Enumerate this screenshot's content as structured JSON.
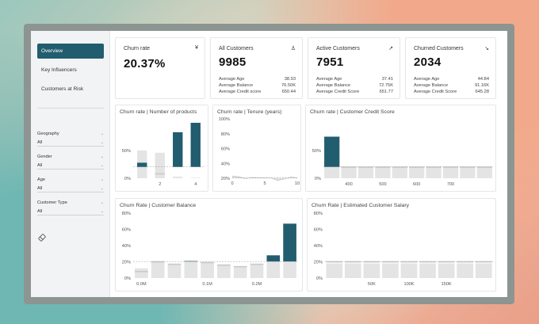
{
  "sidebar": {
    "nav": [
      {
        "label": "Overview",
        "active": true
      },
      {
        "label": "Key Influencers",
        "active": false
      },
      {
        "label": "Customers at Risk",
        "active": false
      }
    ],
    "filters": [
      {
        "label": "Geography",
        "value": "All"
      },
      {
        "label": "Gender",
        "value": "All"
      },
      {
        "label": "Age",
        "value": "All"
      },
      {
        "label": "Customer Type",
        "value": "All"
      }
    ],
    "clear_icon": "eraser-icon"
  },
  "kpis": [
    {
      "title": "Churn rate",
      "value": "20.37%",
      "icon": "chevron-down-double-icon",
      "icon_glyph": "¥",
      "rows": []
    },
    {
      "title": "All Customers",
      "value": "9985",
      "icon": "person-icon",
      "icon_glyph": "♙",
      "rows": [
        {
          "label": "Average Age",
          "value": "38.93"
        },
        {
          "label": "Average Balance",
          "value": "76.50K"
        },
        {
          "label": "Average Credit score",
          "value": "650.44"
        }
      ]
    },
    {
      "title": "Active Customers",
      "value": "7951",
      "icon": "arrow-up-right-icon",
      "icon_glyph": "↗",
      "rows": [
        {
          "label": "Average Age",
          "value": "37.41"
        },
        {
          "label": "Average Balance",
          "value": "72.75K"
        },
        {
          "label": "Average Credit Score",
          "value": "651.77"
        }
      ]
    },
    {
      "title": "Churned Customers",
      "value": "2034",
      "icon": "arrow-down-right-icon",
      "icon_glyph": "↘",
      "rows": [
        {
          "label": "Average Age",
          "value": "44.84"
        },
        {
          "label": "Average Balance",
          "value": "91.16K"
        },
        {
          "label": "Average Credit Score",
          "value": "645.28"
        }
      ]
    }
  ],
  "colors": {
    "accent": "#215d6e",
    "bar_grey": "#e4e4e4",
    "ref_line": "#999999"
  },
  "chart_data": [
    {
      "id": "products",
      "type": "bar",
      "title": "Churn rate | Number of products",
      "ylim": [
        0,
        100
      ],
      "yticks": [
        {
          "v": 0,
          "label": "0%"
        },
        {
          "v": 50,
          "label": "50%"
        }
      ],
      "xticks": [
        {
          "i": 1,
          "label": "2"
        },
        {
          "i": 3,
          "label": "4"
        }
      ],
      "ref": 20.37,
      "values": [
        28,
        8,
        83,
        100
      ],
      "population": [
        50,
        46,
        3,
        1
      ]
    },
    {
      "id": "tenure",
      "type": "area",
      "title": "Churn rate | Tenure (years)",
      "ylim": [
        20,
        100
      ],
      "yticks": [
        {
          "v": 20,
          "label": "20%"
        },
        {
          "v": 40,
          "label": "40%"
        },
        {
          "v": 60,
          "label": "60%"
        },
        {
          "v": 80,
          "label": "80%"
        },
        {
          "v": 100,
          "label": "100%"
        }
      ],
      "xlim": [
        0,
        10
      ],
      "xticks": [
        {
          "v": 0,
          "label": "0"
        },
        {
          "v": 5,
          "label": "5"
        },
        {
          "v": 10,
          "label": "10"
        }
      ],
      "ref": 20.37,
      "x": [
        0,
        1,
        2,
        3,
        4,
        5,
        6,
        7,
        8,
        9,
        10
      ],
      "values": [
        23,
        22,
        19.5,
        21,
        20.5,
        20.5,
        20.3,
        17,
        19,
        21.5,
        20.6
      ]
    },
    {
      "id": "credit",
      "type": "bar",
      "title": "Churn rate | Customer Credit Score",
      "ylim": [
        0,
        100
      ],
      "yticks": [
        {
          "v": 0,
          "label": "0%"
        },
        {
          "v": 50,
          "label": "50%"
        }
      ],
      "xticks": [
        {
          "i": 1,
          "label": "400"
        },
        {
          "i": 3,
          "label": "500"
        },
        {
          "i": 5,
          "label": "600"
        },
        {
          "i": 7,
          "label": "700"
        }
      ],
      "ref": 20.37,
      "values": [
        75,
        20,
        20,
        20,
        20,
        20,
        20,
        20,
        20,
        20
      ],
      "population": [
        20,
        20,
        20,
        20,
        20,
        20,
        20,
        20,
        20,
        20
      ]
    },
    {
      "id": "balance",
      "type": "bar",
      "title": "Churn Rate | Customer Balance",
      "ylim": [
        0,
        80
      ],
      "yticks": [
        {
          "v": 20,
          "label": "20%"
        },
        {
          "v": 40,
          "label": "40%"
        },
        {
          "v": 60,
          "label": "60%"
        },
        {
          "v": 80,
          "label": "80%"
        }
      ],
      "xbase_label": "0%",
      "xticks": [
        {
          "i": 0,
          "label": "0.0M"
        },
        {
          "i": 4,
          "label": "0.1M"
        },
        {
          "i": 7,
          "label": "0.2M"
        }
      ],
      "ref": 20.37,
      "values": [
        8,
        20,
        17,
        21,
        19,
        16,
        14,
        17,
        28,
        67
      ],
      "population": [
        12,
        20,
        17,
        21,
        19,
        16,
        14,
        17,
        20,
        20
      ]
    },
    {
      "id": "salary",
      "type": "bar",
      "title": "Churn Rate | Estimated Customer Salary",
      "ylim": [
        0,
        80
      ],
      "yticks": [
        {
          "v": 20,
          "label": "20%"
        },
        {
          "v": 40,
          "label": "40%"
        },
        {
          "v": 60,
          "label": "60%"
        },
        {
          "v": 80,
          "label": "80%"
        }
      ],
      "xbase_label": "0%",
      "xticks": [
        {
          "i": 2,
          "label": "50K"
        },
        {
          "i": 4,
          "label": "100K"
        },
        {
          "i": 6,
          "label": "150K"
        }
      ],
      "ref": 20.37,
      "values": [
        20,
        20,
        20,
        20,
        20,
        20,
        20,
        20,
        20
      ],
      "population": [
        18,
        18,
        18,
        18,
        18,
        18,
        18,
        18,
        18
      ]
    }
  ]
}
